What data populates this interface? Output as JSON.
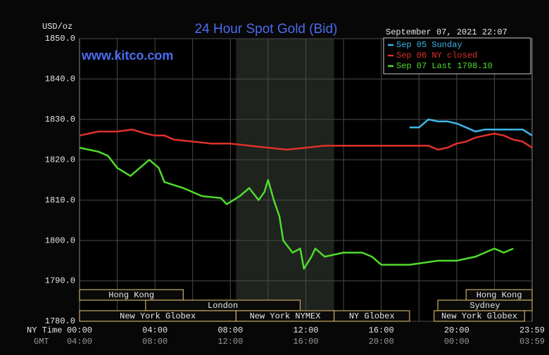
{
  "chart_data": {
    "type": "line",
    "title": "24 Hour Spot Gold (Bid)",
    "watermark": "www.kitco.com",
    "timestamp": "September 07, 2021 22:07",
    "y_label": "USD/oz",
    "x_label": "NY Time",
    "x2_label": "GMT",
    "ylim": [
      1780,
      1850
    ],
    "yticks": [
      {
        "value": 1780,
        "label": "1780.0"
      },
      {
        "value": 1790,
        "label": "1790.0"
      },
      {
        "value": 1800,
        "label": "1800.0"
      },
      {
        "value": 1810,
        "label": "1810.0"
      },
      {
        "value": 1820,
        "label": "1820.0"
      },
      {
        "value": 1830,
        "label": "1830.0"
      },
      {
        "value": 1840,
        "label": "1840.0"
      },
      {
        "value": 1850,
        "label": "1850.0"
      }
    ],
    "xlim": [
      0,
      24
    ],
    "xticks": [
      {
        "value": 0,
        "label": "00:00"
      },
      {
        "value": 4,
        "label": "04:00"
      },
      {
        "value": 8,
        "label": "08:00"
      },
      {
        "value": 12,
        "label": "12:00"
      },
      {
        "value": 16,
        "label": "16:00"
      },
      {
        "value": 20,
        "label": "20:00"
      },
      {
        "value": 24,
        "label": "23:59"
      }
    ],
    "gmt_labels": [
      "04:00",
      "08:00",
      "12:00",
      "16:00",
      "20:00",
      "00:00",
      "03:59"
    ],
    "xgrid": [
      2,
      4,
      6,
      8,
      10,
      12,
      14,
      16,
      18,
      20,
      22
    ],
    "grid": true,
    "highlight_x": [
      8.3,
      13.5
    ],
    "session_rows": [
      [
        {
          "label": "Hong Kong",
          "start": 0,
          "end": 5.5
        },
        {
          "label": "Hong Kong",
          "start": 20.5,
          "end": 24
        }
      ],
      [
        {
          "label": "London",
          "start": 3.5,
          "end": 11.7
        },
        {
          "label": "Sydney",
          "start": 19,
          "end": 24
        }
      ],
      [
        {
          "label": "New York Globex",
          "start": 0,
          "end": 8.3
        },
        {
          "label": "New York NYMEX",
          "start": 8.3,
          "end": 13.5
        },
        {
          "label": "NY Globex",
          "start": 13.5,
          "end": 17.5
        },
        {
          "label": "New York Globex",
          "start": 18.8,
          "end": 23.6
        }
      ]
    ],
    "legend": "top-right",
    "series": [
      {
        "name": "Sep 05 Sunday",
        "color": "#3fb6e8",
        "x": [
          17.5,
          18,
          18.5,
          19,
          19.5,
          20,
          20.5,
          21,
          21.5,
          22,
          22.5,
          23,
          23.5,
          24
        ],
        "values": [
          1828,
          1828,
          1830,
          1829.5,
          1829.5,
          1829,
          1828,
          1827,
          1827.5,
          1827.5,
          1827.5,
          1827.5,
          1827.5,
          1826
        ]
      },
      {
        "name": "Sep 06 NY closed",
        "color": "#e0302a",
        "x": [
          0,
          1,
          2,
          2.8,
          3.5,
          4,
          4.5,
          5,
          6,
          7,
          8,
          9,
          10,
          11,
          12,
          13,
          14,
          15,
          16,
          17,
          18,
          18.5,
          19,
          19.5,
          20,
          20.5,
          21,
          21.5,
          22,
          22.5,
          23,
          23.5,
          24
        ],
        "values": [
          1826,
          1827,
          1827,
          1827.5,
          1826.5,
          1826,
          1826,
          1825,
          1824.5,
          1824,
          1824,
          1823.5,
          1823,
          1822.5,
          1823,
          1823.5,
          1823.5,
          1823.5,
          1823.5,
          1823.5,
          1823.5,
          1823.5,
          1822.5,
          1823,
          1824,
          1824.5,
          1825.5,
          1826,
          1826.5,
          1826,
          1825,
          1824.5,
          1823
        ]
      },
      {
        "name": "Sep 07 Last 1798.10",
        "color": "#4fdc2c",
        "x": [
          0,
          1,
          1.5,
          2,
          2.7,
          3.2,
          3.7,
          4.2,
          4.5,
          5.5,
          6.5,
          7.5,
          7.8,
          8.5,
          9,
          9.5,
          9.8,
          10,
          10.3,
          10.6,
          10.8,
          11.3,
          11.7,
          11.9,
          12.3,
          12.5,
          13,
          14,
          15,
          15.5,
          16,
          17.5,
          19,
          20,
          21,
          22,
          22.5,
          23
        ],
        "values": [
          1823,
          1822,
          1821,
          1818,
          1816,
          1818,
          1820,
          1818,
          1814.5,
          1813,
          1811,
          1810.5,
          1809,
          1811,
          1813,
          1810,
          1812,
          1815,
          1810,
          1806,
          1800,
          1797,
          1798,
          1793,
          1796,
          1798,
          1796,
          1797,
          1797,
          1796,
          1794,
          1794,
          1795,
          1795,
          1796,
          1798,
          1797,
          1798
        ]
      }
    ]
  }
}
